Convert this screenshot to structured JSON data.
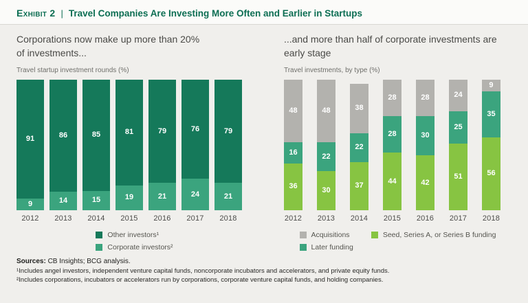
{
  "header": {
    "exhibit_label": "Exhibit 2",
    "separator": "|",
    "title": "Travel Companies Are Investing More Often and Earlier in Startups"
  },
  "chart_data": [
    {
      "type": "bar",
      "stacked": true,
      "title": "Corporations now make up more than 20% of investments...",
      "subtitle": "Travel startup investment rounds (%)",
      "categories": [
        "2012",
        "2013",
        "2014",
        "2015",
        "2016",
        "2017",
        "2018"
      ],
      "series": [
        {
          "name": "Other investors¹",
          "color": "#15795a",
          "values": [
            91,
            86,
            85,
            81,
            79,
            76,
            79
          ]
        },
        {
          "name": "Corporate investors²",
          "color": "#3ba47e",
          "values": [
            9,
            14,
            15,
            19,
            21,
            24,
            21
          ]
        }
      ],
      "ylim": [
        0,
        100
      ],
      "grid": false,
      "legend_position": "bottom",
      "legend_columns": [
        [
          0,
          1
        ]
      ]
    },
    {
      "type": "bar",
      "stacked": true,
      "title": "...and more than half of corporate investments are early stage",
      "subtitle": "Travel investments, by type (%)",
      "categories": [
        "2012",
        "2013",
        "2014",
        "2015",
        "2016",
        "2017",
        "2018"
      ],
      "series": [
        {
          "name": "Acquisitions",
          "color": "#b3b2ae",
          "values": [
            48,
            48,
            38,
            28,
            28,
            24,
            9
          ]
        },
        {
          "name": "Later funding",
          "color": "#3ba47e",
          "values": [
            16,
            22,
            22,
            28,
            30,
            25,
            35
          ]
        },
        {
          "name": "Seed, Series A, or Series B funding",
          "color": "#87c442",
          "values": [
            36,
            30,
            37,
            44,
            42,
            51,
            56
          ]
        }
      ],
      "ylim": [
        0,
        100
      ],
      "grid": false,
      "legend_position": "bottom",
      "legend_columns": [
        [
          0,
          1
        ],
        [
          2
        ]
      ]
    }
  ],
  "footer": {
    "sources_label": "Sources:",
    "sources_text": " CB Insights; BCG analysis.",
    "note1": "¹Includes angel investors, independent venture capital funds, noncorporate incubators and accelerators, and private equity funds.",
    "note2": "²Includes corporations, incubators or accelerators run by corporations, corporate venture capital funds, and holding companies."
  }
}
